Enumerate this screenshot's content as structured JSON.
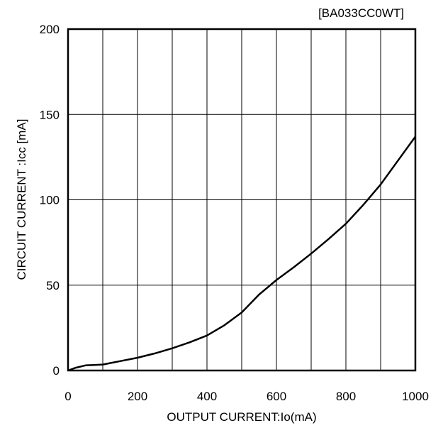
{
  "chart_data": {
    "type": "line",
    "title": "[BA033CC0WT]",
    "xlabel": "OUTPUT CURRENT:Io(mA)",
    "ylabel": "CIRCUIT CURRENT :Icc [mA]",
    "xlim": [
      0,
      1000
    ],
    "ylim": [
      0,
      200
    ],
    "x_ticks": [
      0,
      200,
      400,
      600,
      800,
      1000
    ],
    "y_ticks": [
      0,
      50,
      100,
      150,
      200
    ],
    "x_gridlines": [
      0,
      100,
      200,
      300,
      400,
      500,
      600,
      700,
      800,
      900,
      1000
    ],
    "y_gridlines": [
      0,
      50,
      100,
      150,
      200
    ],
    "grid": true,
    "series": [
      {
        "x": [
          0,
          20,
          50,
          100,
          150,
          200,
          250,
          300,
          350,
          400,
          450,
          500,
          550,
          600,
          650,
          700,
          750,
          800,
          850,
          900,
          950,
          1000
        ],
        "values": [
          0,
          1.5,
          3,
          3.5,
          5.5,
          7.5,
          10,
          13,
          16.5,
          20.5,
          26.5,
          34,
          44.5,
          53,
          60.5,
          68.5,
          77,
          86,
          97,
          109,
          123,
          137
        ]
      }
    ]
  }
}
